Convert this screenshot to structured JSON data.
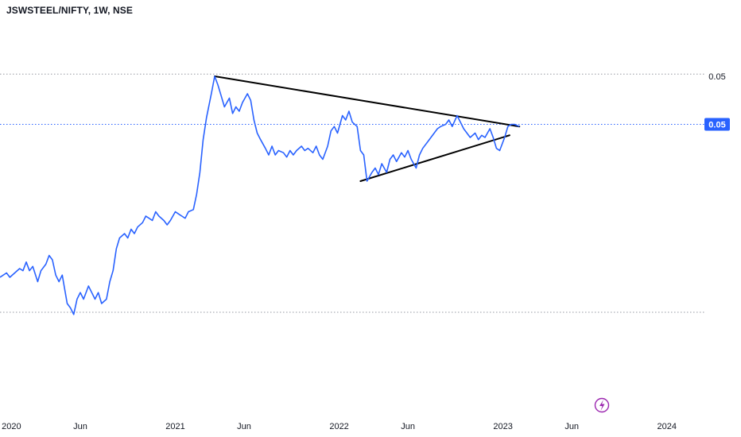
{
  "header": {
    "symbol_title": "JSWSTEEL/NIFTY, 1W, NSE"
  },
  "colors": {
    "series_line": "#2962ff",
    "trendline": "#000000",
    "dotted_level": "#9598a1",
    "current_price_line": "#2962ff",
    "price_badge_bg": "#2962ff",
    "axis_text": "#131722",
    "flash_icon": "#9c27b0"
  },
  "icons": {
    "bottom_icon": "lightning-bolt-icon"
  },
  "chart_data": {
    "type": "line",
    "title": "JSWSTEEL/NIFTY, 1W, NSE",
    "xlabel": "",
    "ylabel": "",
    "x_ticks": [
      "2020",
      "Jun",
      "2021",
      "Jun",
      "2022",
      "Jun",
      "2023",
      "Jun",
      "2024"
    ],
    "x_tick_values": [
      2020.0,
      2020.42,
      2021.0,
      2021.42,
      2022.0,
      2022.42,
      2023.0,
      2023.42,
      2024.0
    ],
    "xlim": [
      2019.93,
      2024.21
    ],
    "ylim": [
      0.0418,
      0.0578
    ],
    "y_axis_labels": [
      {
        "value": 0.0554,
        "label": "0.05"
      },
      {
        "value": 0.0532,
        "label": "0.05",
        "highlight": true
      }
    ],
    "dotted_levels": [
      0.0555,
      0.0446
    ],
    "current_price": 0.0532,
    "grid": false,
    "legend": "none",
    "series": [
      {
        "values": [
          [
            2019.93,
            0.0462
          ],
          [
            2019.97,
            0.0464
          ],
          [
            2019.99,
            0.0462
          ],
          [
            2020.02,
            0.0464
          ],
          [
            2020.05,
            0.0466
          ],
          [
            2020.07,
            0.0465
          ],
          [
            2020.09,
            0.0469
          ],
          [
            2020.11,
            0.0465
          ],
          [
            2020.13,
            0.0467
          ],
          [
            2020.16,
            0.046
          ],
          [
            2020.18,
            0.0465
          ],
          [
            2020.21,
            0.0468
          ],
          [
            2020.23,
            0.0472
          ],
          [
            2020.25,
            0.047
          ],
          [
            2020.27,
            0.0463
          ],
          [
            2020.29,
            0.046
          ],
          [
            2020.31,
            0.0463
          ],
          [
            2020.34,
            0.045
          ],
          [
            2020.36,
            0.0448
          ],
          [
            2020.38,
            0.0445
          ],
          [
            2020.4,
            0.0452
          ],
          [
            2020.42,
            0.0455
          ],
          [
            2020.44,
            0.0452
          ],
          [
            2020.47,
            0.0458
          ],
          [
            2020.49,
            0.0455
          ],
          [
            2020.51,
            0.0452
          ],
          [
            2020.53,
            0.0455
          ],
          [
            2020.55,
            0.045
          ],
          [
            2020.58,
            0.0452
          ],
          [
            2020.6,
            0.046
          ],
          [
            2020.62,
            0.0465
          ],
          [
            2020.64,
            0.0475
          ],
          [
            2020.66,
            0.048
          ],
          [
            2020.69,
            0.0482
          ],
          [
            2020.71,
            0.048
          ],
          [
            2020.73,
            0.0484
          ],
          [
            2020.75,
            0.0482
          ],
          [
            2020.77,
            0.0485
          ],
          [
            2020.8,
            0.0487
          ],
          [
            2020.82,
            0.049
          ],
          [
            2020.84,
            0.0489
          ],
          [
            2020.86,
            0.0488
          ],
          [
            2020.88,
            0.0492
          ],
          [
            2020.9,
            0.049
          ],
          [
            2020.93,
            0.0488
          ],
          [
            2020.95,
            0.0486
          ],
          [
            2020.97,
            0.0488
          ],
          [
            2021.0,
            0.0492
          ],
          [
            2021.02,
            0.0491
          ],
          [
            2021.04,
            0.049
          ],
          [
            2021.06,
            0.0489
          ],
          [
            2021.08,
            0.0492
          ],
          [
            2021.11,
            0.0493
          ],
          [
            2021.13,
            0.05
          ],
          [
            2021.15,
            0.051
          ],
          [
            2021.17,
            0.0525
          ],
          [
            2021.19,
            0.0535
          ],
          [
            2021.22,
            0.0546
          ],
          [
            2021.24,
            0.0554
          ],
          [
            2021.26,
            0.055
          ],
          [
            2021.28,
            0.0545
          ],
          [
            2021.3,
            0.054
          ],
          [
            2021.33,
            0.0544
          ],
          [
            2021.35,
            0.0537
          ],
          [
            2021.37,
            0.054
          ],
          [
            2021.39,
            0.0538
          ],
          [
            2021.41,
            0.0542
          ],
          [
            2021.44,
            0.0546
          ],
          [
            2021.46,
            0.0543
          ],
          [
            2021.48,
            0.0534
          ],
          [
            2021.5,
            0.0528
          ],
          [
            2021.52,
            0.0525
          ],
          [
            2021.55,
            0.0521
          ],
          [
            2021.57,
            0.0518
          ],
          [
            2021.59,
            0.0522
          ],
          [
            2021.61,
            0.0518
          ],
          [
            2021.63,
            0.052
          ],
          [
            2021.66,
            0.0519
          ],
          [
            2021.68,
            0.0517
          ],
          [
            2021.7,
            0.052
          ],
          [
            2021.72,
            0.0518
          ],
          [
            2021.74,
            0.052
          ],
          [
            2021.77,
            0.0522
          ],
          [
            2021.79,
            0.052
          ],
          [
            2021.81,
            0.0521
          ],
          [
            2021.84,
            0.0519
          ],
          [
            2021.86,
            0.0522
          ],
          [
            2021.88,
            0.0518
          ],
          [
            2021.9,
            0.0516
          ],
          [
            2021.93,
            0.0522
          ],
          [
            2021.95,
            0.0529
          ],
          [
            2021.97,
            0.0531
          ],
          [
            2021.99,
            0.0528
          ],
          [
            2022.02,
            0.0536
          ],
          [
            2022.04,
            0.0534
          ],
          [
            2022.06,
            0.0538
          ],
          [
            2022.08,
            0.0533
          ],
          [
            2022.11,
            0.0531
          ],
          [
            2022.13,
            0.052
          ],
          [
            2022.15,
            0.0518
          ],
          [
            2022.17,
            0.0506
          ],
          [
            2022.2,
            0.051
          ],
          [
            2022.22,
            0.0512
          ],
          [
            2022.24,
            0.0509
          ],
          [
            2022.26,
            0.0514
          ],
          [
            2022.29,
            0.051
          ],
          [
            2022.31,
            0.0516
          ],
          [
            2022.33,
            0.0518
          ],
          [
            2022.35,
            0.0515
          ],
          [
            2022.38,
            0.0519
          ],
          [
            2022.4,
            0.0517
          ],
          [
            2022.42,
            0.052
          ],
          [
            2022.44,
            0.0516
          ],
          [
            2022.47,
            0.0512
          ],
          [
            2022.49,
            0.0518
          ],
          [
            2022.51,
            0.0521
          ],
          [
            2022.54,
            0.0524
          ],
          [
            2022.56,
            0.0526
          ],
          [
            2022.58,
            0.0528
          ],
          [
            2022.6,
            0.053
          ],
          [
            2022.62,
            0.0531
          ],
          [
            2022.65,
            0.0532
          ],
          [
            2022.67,
            0.0534
          ],
          [
            2022.69,
            0.0531
          ],
          [
            2022.72,
            0.0536
          ],
          [
            2022.74,
            0.0533
          ],
          [
            2022.76,
            0.053
          ],
          [
            2022.78,
            0.0528
          ],
          [
            2022.8,
            0.0526
          ],
          [
            2022.83,
            0.0528
          ],
          [
            2022.85,
            0.0525
          ],
          [
            2022.87,
            0.0527
          ],
          [
            2022.89,
            0.0526
          ],
          [
            2022.92,
            0.053
          ],
          [
            2022.94,
            0.0526
          ],
          [
            2022.96,
            0.0521
          ],
          [
            2022.98,
            0.052
          ],
          [
            2023.01,
            0.0526
          ],
          [
            2023.03,
            0.0531
          ],
          [
            2023.05,
            0.0532
          ],
          [
            2023.07,
            0.0532
          ],
          [
            2023.1,
            0.0531
          ]
        ]
      }
    ],
    "trendlines": [
      {
        "x1": 2021.24,
        "y1": 0.0554,
        "x2": 2023.1,
        "y2": 0.0531
      },
      {
        "x1": 2022.13,
        "y1": 0.0506,
        "x2": 2023.04,
        "y2": 0.0527
      }
    ]
  }
}
